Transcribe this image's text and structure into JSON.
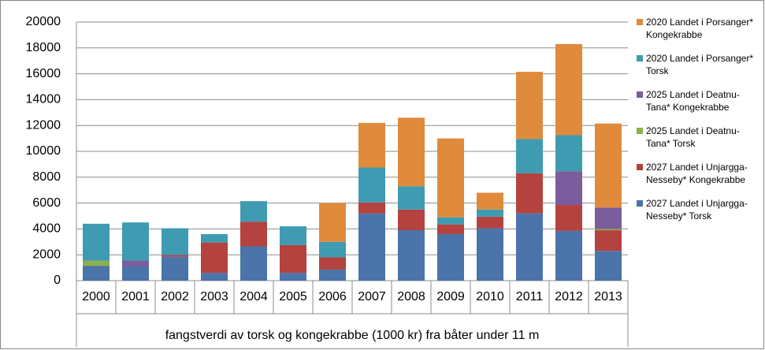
{
  "chart_data": {
    "type": "stacked_bar",
    "x_title": "fangstverdi av torsk og kongekrabbe (1000 kr) fra båter under 11 m",
    "categories": [
      "2000",
      "2001",
      "2002",
      "2003",
      "2004",
      "2005",
      "2006",
      "2007",
      "2008",
      "2009",
      "2010",
      "2011",
      "2012",
      "2013"
    ],
    "series": [
      {
        "name": "2027 Landet i Unjargga-Nesseby* Torsk",
        "color": "#4a74aa",
        "values": [
          1150,
          1100,
          1850,
          600,
          2650,
          600,
          850,
          5200,
          3900,
          3600,
          4050,
          5200,
          3850,
          2300
        ]
      },
      {
        "name": "2027 Landet i Unjargga-Nesseby* Kongekrabbe",
        "color": "#b4423f",
        "values": [
          0,
          0,
          100,
          2350,
          1900,
          2150,
          950,
          850,
          1600,
          750,
          900,
          3100,
          2000,
          1600
        ]
      },
      {
        "name": "2025 Landet i Deatnu-Tana* Torsk",
        "color": "#8db04c",
        "values": [
          400,
          0,
          0,
          0,
          0,
          0,
          0,
          0,
          0,
          0,
          0,
          0,
          0,
          100
        ]
      },
      {
        "name": "2025 Landet i Deatnu-Tana* Kongekrabbe",
        "color": "#7b5c9c",
        "values": [
          0,
          450,
          50,
          0,
          0,
          0,
          0,
          0,
          0,
          0,
          0,
          0,
          2600,
          1650
        ]
      },
      {
        "name": "2020 Landet i Porsanger* Torsk",
        "color": "#3f9bb1",
        "values": [
          2850,
          2950,
          2050,
          650,
          1600,
          1450,
          1200,
          2700,
          1800,
          550,
          550,
          2650,
          2800,
          0
        ]
      },
      {
        "name": "2020 Landet i Porsanger* Kongekrabbe",
        "color": "#e08a3c",
        "values": [
          0,
          0,
          0,
          0,
          0,
          0,
          3000,
          3450,
          5300,
          6100,
          1300,
          5200,
          7050,
          6500
        ]
      }
    ],
    "ylim": [
      0,
      20000
    ],
    "yticks": [
      0,
      2000,
      4000,
      6000,
      8000,
      10000,
      12000,
      14000,
      16000,
      18000,
      20000
    ],
    "grid": true
  }
}
